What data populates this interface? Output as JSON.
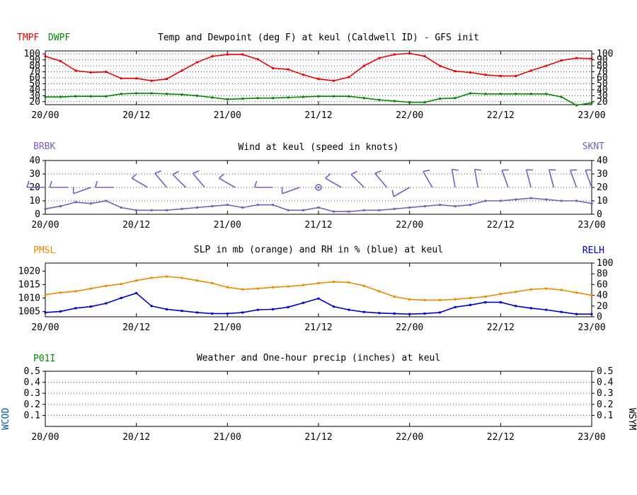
{
  "colors": {
    "temp": "#ee0000",
    "dewp": "#008800",
    "wind": "#7b5cc4",
    "pmsl": "#ee8800",
    "relh": "#0000cc",
    "precip": "#008800",
    "wcod": "#0055aa"
  },
  "x_ticks": [
    "20/00",
    "20/12",
    "21/00",
    "21/12",
    "22/00",
    "22/12",
    "23/00"
  ],
  "x_tick_hours": [
    0,
    12,
    24,
    36,
    48,
    60,
    72
  ],
  "chart_data": [
    {
      "type": "line",
      "title": "Temp and Dewpoint (deg F) at keul  (Caldwell ID) - GFS init",
      "left_label_1": "TMPF",
      "left_label_2": "DWPF",
      "ylim": [
        15,
        105
      ],
      "yticks": [
        "20",
        "30",
        "40",
        "50",
        "60",
        "70",
        "80",
        "90",
        "100"
      ],
      "grid": true,
      "series": [
        {
          "name": "TMPF",
          "x_hours": [
            0,
            2,
            4,
            6,
            8,
            10,
            12,
            14,
            16,
            18,
            20,
            22,
            24,
            26,
            28,
            30,
            32,
            34,
            36,
            38,
            40,
            42,
            44,
            46,
            48,
            50,
            52,
            54,
            56,
            58,
            60,
            62,
            64,
            66,
            68,
            70,
            72
          ],
          "values": [
            96,
            88,
            72,
            69,
            70,
            59,
            59,
            55,
            58,
            72,
            86,
            96,
            99,
            99,
            91,
            76,
            74,
            65,
            58,
            55,
            61,
            80,
            93,
            99,
            101,
            96,
            80,
            71,
            69,
            65,
            63,
            63,
            72,
            80,
            89,
            93,
            92
          ]
        },
        {
          "name": "DWPF",
          "x_hours": [
            0,
            2,
            4,
            6,
            8,
            10,
            12,
            14,
            16,
            18,
            20,
            22,
            24,
            26,
            28,
            30,
            32,
            34,
            36,
            38,
            40,
            42,
            44,
            46,
            48,
            50,
            52,
            54,
            56,
            58,
            60,
            62,
            64,
            66,
            68,
            70,
            72
          ],
          "values": [
            28,
            28,
            29,
            29,
            29,
            33,
            34,
            34,
            33,
            32,
            30,
            27,
            24,
            25,
            26,
            26,
            27,
            28,
            29,
            29,
            29,
            26,
            23,
            21,
            19,
            19,
            25,
            26,
            34,
            33,
            33,
            33,
            33,
            33,
            28,
            14,
            18
          ]
        }
      ]
    },
    {
      "type": "line",
      "title": "Wind at  keul  (speed in knots)",
      "left_label": "BRBK",
      "right_label": "SKNT",
      "ylim": [
        0,
        40
      ],
      "yticks": [
        "0",
        "10",
        "20",
        "30",
        "40"
      ],
      "grid": true,
      "series": [
        {
          "name": "SKNT",
          "x_hours": [
            0,
            2,
            4,
            6,
            8,
            10,
            12,
            14,
            16,
            18,
            20,
            22,
            24,
            26,
            28,
            30,
            32,
            34,
            36,
            38,
            40,
            42,
            44,
            46,
            48,
            50,
            52,
            54,
            56,
            58,
            60,
            62,
            64,
            66,
            68,
            70,
            72
          ],
          "values": [
            4,
            6,
            9,
            8,
            10,
            5,
            3,
            3,
            3,
            4,
            5,
            6,
            7,
            5,
            7,
            7,
            3,
            3,
            5,
            2,
            2,
            3,
            3,
            4,
            5,
            6,
            7,
            6,
            7,
            10,
            10,
            11,
            12,
            11,
            10,
            10,
            8
          ]
        }
      ],
      "barbs": [
        {
          "x_hours": 0,
          "dir": 270
        },
        {
          "x_hours": 3,
          "dir": 270
        },
        {
          "x_hours": 6,
          "dir": 250
        },
        {
          "x_hours": 9,
          "dir": 270
        },
        {
          "x_hours": 13.5,
          "dir": 300
        },
        {
          "x_hours": 16,
          "dir": 320
        },
        {
          "x_hours": 18.5,
          "dir": 315
        },
        {
          "x_hours": 21,
          "dir": 320
        },
        {
          "x_hours": 25,
          "dir": 300
        },
        {
          "x_hours": 30,
          "dir": 270
        },
        {
          "x_hours": 33.5,
          "dir": 250
        },
        {
          "x_hours": 36,
          "dir": 0,
          "calm": true
        },
        {
          "x_hours": 39,
          "dir": 300
        },
        {
          "x_hours": 42,
          "dir": 315
        },
        {
          "x_hours": 45,
          "dir": 320
        },
        {
          "x_hours": 48,
          "dir": 240
        },
        {
          "x_hours": 51,
          "dir": 330
        },
        {
          "x_hours": 54,
          "dir": 350
        },
        {
          "x_hours": 57,
          "dir": 350
        },
        {
          "x_hours": 61,
          "dir": 340
        },
        {
          "x_hours": 64,
          "dir": 345
        },
        {
          "x_hours": 67,
          "dir": 345
        },
        {
          "x_hours": 70,
          "dir": 340
        },
        {
          "x_hours": 72,
          "dir": 340
        }
      ]
    },
    {
      "type": "line",
      "title": "SLP in mb (orange) and RH in % (blue) at  keul",
      "left_label": "PMSL",
      "right_label": "RELH",
      "ylim_left": [
        1003,
        1023
      ],
      "yticks_left": [
        "1005",
        "1010",
        "1015",
        "1020"
      ],
      "ylim_right": [
        0,
        100
      ],
      "yticks_right": [
        "0",
        "20",
        "40",
        "60",
        "80",
        "100"
      ],
      "series": [
        {
          "name": "PMSL",
          "axis": "left",
          "x_hours": [
            0,
            2,
            4,
            6,
            8,
            10,
            12,
            14,
            16,
            18,
            20,
            22,
            24,
            26,
            28,
            30,
            32,
            34,
            36,
            38,
            40,
            42,
            44,
            46,
            48,
            50,
            52,
            54,
            56,
            58,
            60,
            62,
            64,
            66,
            68,
            70,
            72
          ],
          "values": [
            1011.2,
            1012.0,
            1012.5,
            1013.5,
            1014.5,
            1015.2,
            1016.5,
            1017.5,
            1018.0,
            1017.5,
            1016.5,
            1015.5,
            1014.0,
            1013.2,
            1013.5,
            1014.0,
            1014.3,
            1014.8,
            1015.5,
            1016.0,
            1015.8,
            1014.5,
            1012.5,
            1010.5,
            1009.5,
            1009.2,
            1009.2,
            1009.5,
            1010.0,
            1010.5,
            1011.5,
            1012.3,
            1013.2,
            1013.5,
            1013.0,
            1012.0,
            1011.0
          ]
        },
        {
          "name": "RELH",
          "axis": "right",
          "x_hours": [
            0,
            2,
            4,
            6,
            8,
            10,
            12,
            14,
            16,
            18,
            20,
            22,
            24,
            26,
            28,
            30,
            32,
            34,
            36,
            38,
            40,
            42,
            44,
            46,
            48,
            50,
            52,
            54,
            56,
            58,
            60,
            62,
            64,
            66,
            68,
            70,
            72
          ],
          "values": [
            8,
            10,
            16,
            19,
            25,
            35,
            44,
            20,
            14,
            11,
            8,
            6,
            6,
            8,
            13,
            14,
            18,
            26,
            34,
            19,
            13,
            9,
            7,
            6,
            5,
            6,
            8,
            18,
            22,
            27,
            27,
            20,
            16,
            13,
            9,
            5,
            5
          ]
        }
      ]
    },
    {
      "type": "bar",
      "title": "Weather and One-hour precip (inches) at  keul",
      "left_label": "P01I",
      "side_label_left": "WCOD",
      "side_label_right": "WSYM",
      "ylim": [
        0,
        0.5
      ],
      "yticks": [
        "0.1",
        "0.2",
        "0.3",
        "0.4",
        "0.5"
      ],
      "grid": true,
      "series": [
        {
          "name": "P01I",
          "values": []
        }
      ]
    }
  ]
}
